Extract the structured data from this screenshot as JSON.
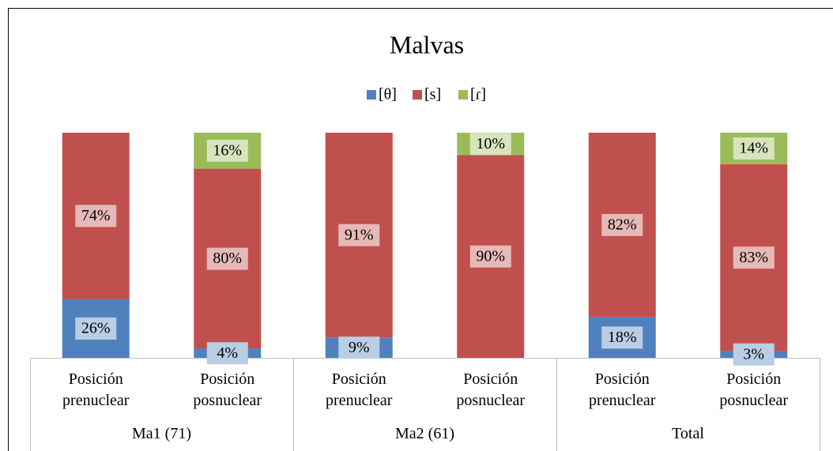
{
  "chart_data": {
    "type": "stacked_bar",
    "title": "Malvas",
    "categories": [
      "Posición prenuclear",
      "Posición posnuclear",
      "Posición prenuclear",
      "Posición posnuclear",
      "Posición prenuclear",
      "Posición posnuclear"
    ],
    "groups": [
      "Ma1 (71)",
      "Ma2 (61)",
      "Total"
    ],
    "series": [
      {
        "name": "[θ]",
        "color": "#4f81bd",
        "label_color": "#b9cde5",
        "values": [
          26,
          4,
          9,
          0,
          18,
          3
        ],
        "value_labels": [
          "26%",
          "4%",
          "9%",
          null,
          "18%",
          "3%"
        ]
      },
      {
        "name": "[s]",
        "color": "#c0504d",
        "label_color": "#e6b9b8",
        "values": [
          74,
          80,
          91,
          90,
          82,
          83
        ],
        "value_labels": [
          "74%",
          "80%",
          "91%",
          "90%",
          "82%",
          "83%"
        ]
      },
      {
        "name": "[ɾ]",
        "color": "#9bbb59",
        "label_color": "#d7e4bd",
        "values": [
          0,
          16,
          0,
          10,
          0,
          14
        ],
        "value_labels": [
          null,
          "16%",
          null,
          "10%",
          null,
          "14%"
        ]
      }
    ],
    "ylim": [
      0,
      100
    ],
    "legend": "top"
  }
}
